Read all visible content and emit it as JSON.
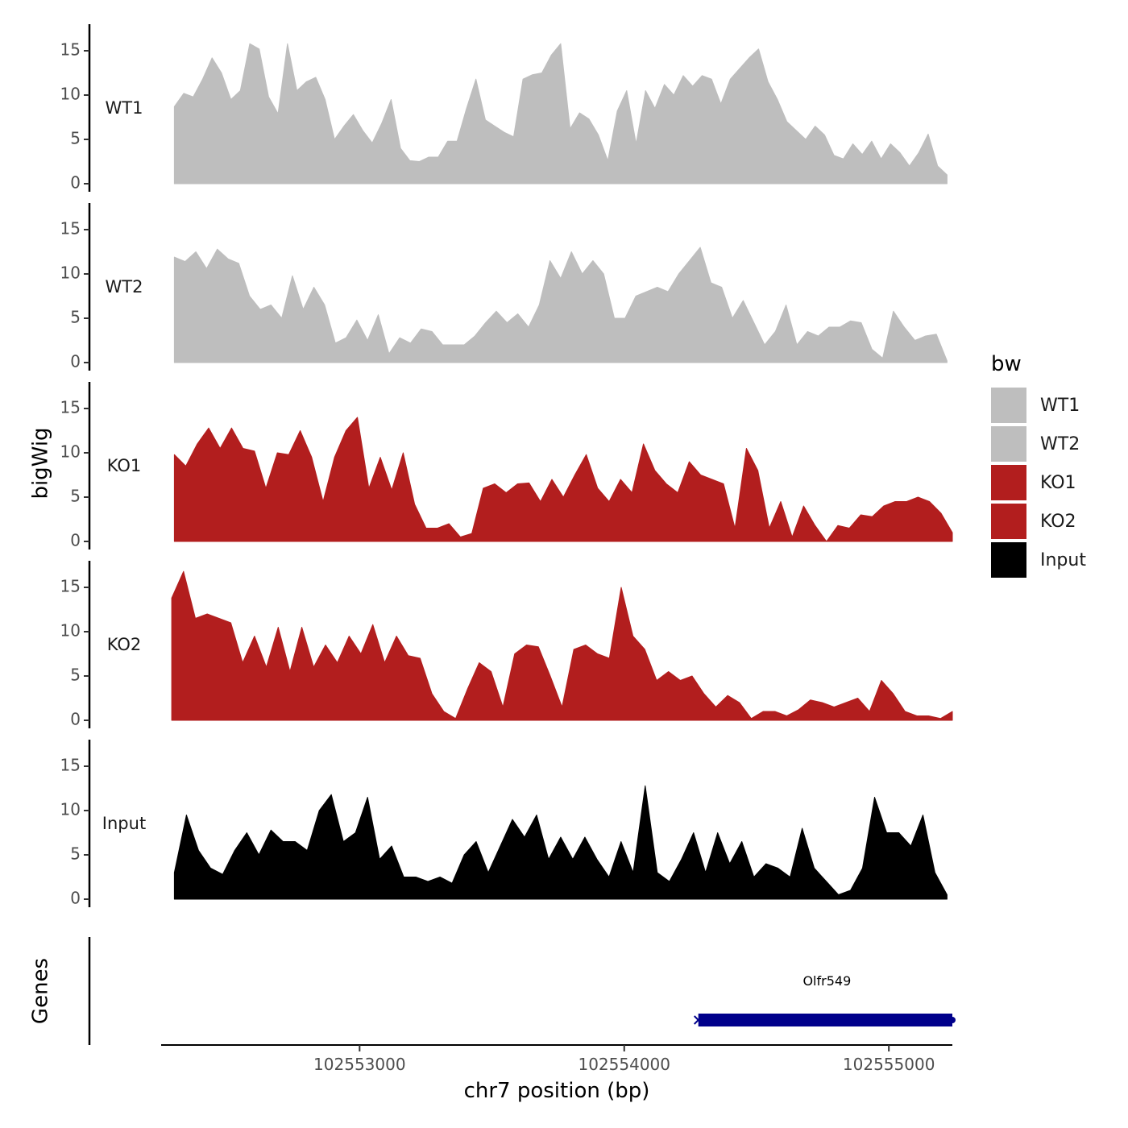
{
  "chart_data": {
    "type": "area",
    "chromosome": "chr7",
    "xlabel": "chr7 position (bp)",
    "ylabel": "bigWig",
    "xlim": [
      102552250,
      102555240
    ],
    "ylim": [
      0,
      18
    ],
    "x_ticks": [
      {
        "value": 102553000,
        "label": "102553000"
      },
      {
        "value": 102554000,
        "label": "102554000"
      },
      {
        "value": 102555000,
        "label": "102555000"
      }
    ],
    "y_ticks": [
      {
        "value": 0,
        "label": "0"
      },
      {
        "value": 5,
        "label": "5"
      },
      {
        "value": 10,
        "label": "10"
      },
      {
        "value": 15,
        "label": "15"
      }
    ],
    "genes_track_label": "Genes",
    "legend": {
      "title": "bw",
      "entries": [
        {
          "label": "WT1",
          "color": "#bebebe"
        },
        {
          "label": "WT2",
          "color": "#bebebe"
        },
        {
          "label": "KO1",
          "color": "#b21e1e"
        },
        {
          "label": "KO2",
          "color": "#b21e1e"
        },
        {
          "label": "Input",
          "color": "#000000"
        }
      ]
    },
    "series": [
      {
        "name": "WT1",
        "color": "#bebebe",
        "start": 102552300,
        "end": 102555220,
        "values": [
          8.7,
          10.2,
          9.8,
          11.8,
          14.2,
          12.5,
          9.5,
          10.5,
          15.8,
          15.2,
          9.8,
          7.9,
          15.8,
          10.5,
          11.5,
          12.0,
          9.5,
          5.0,
          6.5,
          7.8,
          6.0,
          4.6,
          6.8,
          9.5,
          4.0,
          2.6,
          2.5,
          3.0,
          3.0,
          4.8,
          4.8,
          8.5,
          11.8,
          7.2,
          6.5,
          5.8,
          5.3,
          11.8,
          12.3,
          12.5,
          14.5,
          15.8,
          6.2,
          8.0,
          7.3,
          5.5,
          2.6,
          8.2,
          10.5,
          4.5,
          10.5,
          8.5,
          11.2,
          10.0,
          12.2,
          11.0,
          12.2,
          11.8,
          9.0,
          11.8,
          13.0,
          14.2,
          15.2,
          11.5,
          9.5,
          7.0,
          6.0,
          5.0,
          6.5,
          5.5,
          3.2,
          2.8,
          4.5,
          3.3,
          4.8,
          2.8,
          4.5,
          3.5,
          2.0,
          3.5,
          5.6,
          2.0,
          1.0
        ]
      },
      {
        "name": "WT2",
        "color": "#bebebe",
        "start": 102552300,
        "end": 102555220,
        "values": [
          11.9,
          11.4,
          12.5,
          10.6,
          12.8,
          11.7,
          11.2,
          7.5,
          6.0,
          6.5,
          5.0,
          9.8,
          6.0,
          8.5,
          6.5,
          2.2,
          2.8,
          4.8,
          2.5,
          5.4,
          1.0,
          2.8,
          2.2,
          3.8,
          3.5,
          2.0,
          2.0,
          2.0,
          3.0,
          4.5,
          5.8,
          4.5,
          5.5,
          4.0,
          6.5,
          11.5,
          9.5,
          12.5,
          10.0,
          11.5,
          10.0,
          5.0,
          5.0,
          7.5,
          8.0,
          8.5,
          8.0,
          10.0,
          11.5,
          13.0,
          9.0,
          8.5,
          5.0,
          7.0,
          4.5,
          2.0,
          3.5,
          6.5,
          2.0,
          3.5,
          3.0,
          4.0,
          4.0,
          4.7,
          4.5,
          1.5,
          0.5,
          5.8,
          4.0,
          2.5,
          3.0,
          3.2,
          0.2
        ]
      },
      {
        "name": "KO1",
        "color": "#b21e1e",
        "start": 102552300,
        "end": 102555240,
        "values": [
          9.8,
          8.5,
          11.0,
          12.8,
          10.5,
          12.8,
          10.5,
          10.2,
          6.0,
          10.0,
          9.8,
          12.5,
          9.5,
          4.5,
          9.5,
          12.5,
          14.0,
          6.0,
          9.5,
          5.8,
          10.0,
          4.2,
          1.5,
          1.5,
          2.0,
          0.5,
          0.9,
          6.0,
          6.5,
          5.5,
          6.5,
          6.6,
          4.5,
          7.0,
          5.0,
          7.5,
          9.8,
          6.0,
          4.5,
          7.0,
          5.5,
          11.0,
          8.0,
          6.5,
          5.5,
          9.0,
          7.5,
          7.0,
          6.5,
          1.5,
          10.5,
          8.0,
          1.5,
          4.5,
          0.5,
          4.0,
          1.8,
          0.0,
          1.8,
          1.5,
          3.0,
          2.8,
          4.0,
          4.5,
          4.5,
          5.0,
          4.5,
          3.2,
          1.0
        ]
      },
      {
        "name": "KO2",
        "color": "#b21e1e",
        "start": 102552290,
        "end": 102555240,
        "values": [
          13.8,
          16.8,
          11.5,
          12.0,
          11.5,
          11.0,
          6.5,
          9.5,
          6.0,
          10.5,
          5.5,
          10.5,
          6.0,
          8.5,
          6.5,
          9.5,
          7.5,
          10.8,
          6.5,
          9.5,
          7.3,
          7.0,
          3.0,
          1.0,
          0.2,
          3.5,
          6.5,
          5.5,
          1.5,
          7.5,
          8.5,
          8.3,
          5.0,
          1.5,
          8.0,
          8.5,
          7.5,
          7.0,
          15.0,
          9.5,
          8.0,
          4.5,
          5.5,
          4.5,
          5.0,
          3.0,
          1.5,
          2.8,
          2.0,
          0.2,
          1.0,
          1.0,
          0.5,
          1.2,
          2.3,
          2.0,
          1.5,
          2.0,
          2.5,
          1.0,
          4.5,
          3.0,
          1.0,
          0.5,
          0.5,
          0.2,
          1.0
        ]
      },
      {
        "name": "Input",
        "color": "#000000",
        "start": 102552300,
        "end": 102555220,
        "values": [
          3.0,
          9.5,
          5.5,
          3.5,
          2.8,
          5.5,
          7.5,
          5.0,
          7.8,
          6.5,
          6.5,
          5.5,
          10.0,
          11.8,
          6.5,
          7.5,
          11.5,
          4.5,
          6.0,
          2.5,
          2.5,
          2.0,
          2.5,
          1.8,
          5.0,
          6.5,
          3.0,
          6.0,
          9.0,
          7.0,
          9.5,
          4.5,
          7.0,
          4.5,
          7.0,
          4.5,
          2.5,
          6.5,
          3.0,
          12.8,
          3.0,
          2.0,
          4.5,
          7.5,
          3.0,
          7.5,
          4.0,
          6.5,
          2.5,
          4.0,
          3.5,
          2.5,
          8.0,
          3.5,
          2.0,
          0.5,
          1.0,
          3.5,
          11.5,
          7.5,
          7.5,
          6.0,
          9.5,
          3.0,
          0.5
        ]
      }
    ],
    "genes": [
      {
        "name": "Olfr549",
        "start": 102554280,
        "end": 102555240,
        "strand": "-",
        "color": "#00008b"
      }
    ]
  }
}
